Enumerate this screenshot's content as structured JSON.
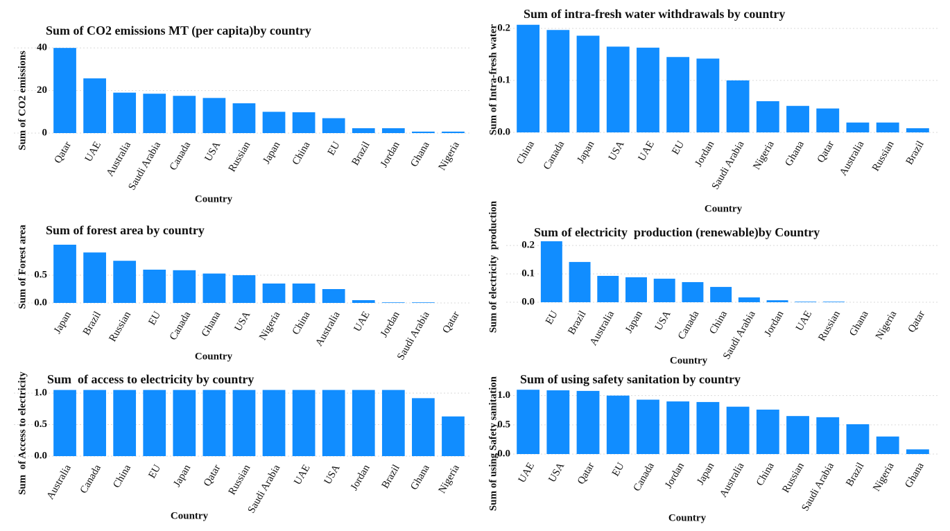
{
  "chart_data": [
    {
      "type": "bar",
      "title": "Sum of CO2 emissions MT (per capita)by country",
      "x_label": "Country",
      "y_label": "Sum of CO2 emissions",
      "categories": [
        "Qatar",
        "UAE",
        "Australia",
        "Saudi Arabia",
        "Canada",
        "USA",
        "Russian",
        "Japan",
        "China",
        "EU",
        "Brazil",
        "Jordan",
        "Ghana",
        "Nigeria"
      ],
      "values": [
        40,
        25.7,
        19,
        18.5,
        17.5,
        16.5,
        14,
        10,
        9.8,
        7,
        2.3,
        2.3,
        0.7,
        0.7
      ],
      "color": "#118dff",
      "ylim": [
        0,
        42
      ],
      "yticks": [
        0,
        20,
        40
      ],
      "grid": true
    },
    {
      "type": "bar",
      "title": "Sum of intra-fresh water withdrawals by country",
      "x_label": "Country",
      "y_label": "Sum of Intra-fresh water",
      "categories": [
        "China",
        "Canada",
        "Japan",
        "USA",
        "UAE",
        "EU",
        "Jordan",
        "Saudi Arabia",
        "Nigeria",
        "Ghana",
        "Qatar",
        "Australia",
        "Russian",
        "Brazil"
      ],
      "values": [
        0.207,
        0.197,
        0.186,
        0.165,
        0.163,
        0.145,
        0.142,
        0.1,
        0.06,
        0.051,
        0.046,
        0.019,
        0.019,
        0.008
      ],
      "color": "#118dff",
      "ylim": [
        0,
        0.21
      ],
      "yticks": [
        {
          "value": 0,
          "label": "0.0"
        },
        0.1,
        0.2
      ],
      "grid": true
    },
    {
      "type": "bar",
      "title": "Sum of forest area by country",
      "x_label": "Country",
      "y_label": "Sum of Forest area",
      "categories": [
        "Japan",
        "Brazil",
        "Russian",
        "EU",
        "Canada",
        "Ghana",
        "USA",
        "Nigeria",
        "China",
        "Australia",
        "UAE",
        "Jordan",
        "Saudi Arabia",
        "Qatar"
      ],
      "values": [
        1.05,
        0.91,
        0.76,
        0.6,
        0.59,
        0.53,
        0.5,
        0.35,
        0.35,
        0.25,
        0.05,
        0.01,
        0.01,
        0
      ],
      "color": "#118dff",
      "ylim": [
        0,
        1.1
      ],
      "yticks": [
        {
          "value": 0,
          "label": "0.0"
        },
        0.5
      ],
      "grid": true
    },
    {
      "type": "bar",
      "title": "Sum of electricity  production (renewable)by Country",
      "x_label": "Country",
      "y_label": "Sum of electricity  production",
      "categories": [
        "EU",
        "Brazil",
        "Australia",
        "Japan",
        "USA",
        "Canada",
        "China",
        "Saudi Arabia",
        "Jordan",
        "UAE",
        "Russian",
        "Ghana",
        "Nigeria",
        "Qatar"
      ],
      "values": [
        0.215,
        0.142,
        0.093,
        0.088,
        0.083,
        0.071,
        0.054,
        0.017,
        0.007,
        0.002,
        0.002,
        0,
        0,
        0
      ],
      "color": "#118dff",
      "ylim": [
        0,
        0.22
      ],
      "yticks": [
        {
          "value": 0,
          "label": "0.0"
        },
        0.1,
        0.2
      ],
      "grid": true
    },
    {
      "type": "bar",
      "title": "Sum  of access to electricity by country",
      "x_label": "Country",
      "y_label": "Sum  of Access to electricity",
      "categories": [
        "Australia",
        "Canada",
        "China",
        "EU",
        "Japan",
        "Qatar",
        "Russian",
        "Saudi Arabia",
        "UAE",
        "USA",
        "Jordan",
        "Brazil",
        "Ghana",
        "Nigeria"
      ],
      "values": [
        1.05,
        1.05,
        1.05,
        1.05,
        1.05,
        1.05,
        1.05,
        1.05,
        1.05,
        1.05,
        1.05,
        1.05,
        0.92,
        0.63
      ],
      "color": "#118dff",
      "ylim": [
        0,
        1.1
      ],
      "yticks": [
        {
          "value": 0,
          "label": "0.0"
        },
        0.5,
        {
          "value": 1,
          "label": "1.0"
        }
      ],
      "grid": true
    },
    {
      "type": "bar",
      "title": "Sum of using safety sanitation by country",
      "x_label": "Country",
      "y_label": "Sum of using Safety sanitation",
      "categories": [
        "UAE",
        "USA",
        "Qatar",
        "EU",
        "Canada",
        "Jordan",
        "Japan",
        "Australia",
        "China",
        "Russian",
        "Saudi Arabia",
        "Brazil",
        "Nigeria",
        "Ghana"
      ],
      "values": [
        1.1,
        1.09,
        1.08,
        1.0,
        0.93,
        0.9,
        0.89,
        0.81,
        0.76,
        0.65,
        0.63,
        0.51,
        0.3,
        0.08
      ],
      "color": "#118dff",
      "ylim": [
        0,
        1.15
      ],
      "yticks": [
        {
          "value": 0,
          "label": "0.0"
        },
        0.5,
        {
          "value": 1,
          "label": "1.0"
        }
      ],
      "grid": true
    }
  ]
}
